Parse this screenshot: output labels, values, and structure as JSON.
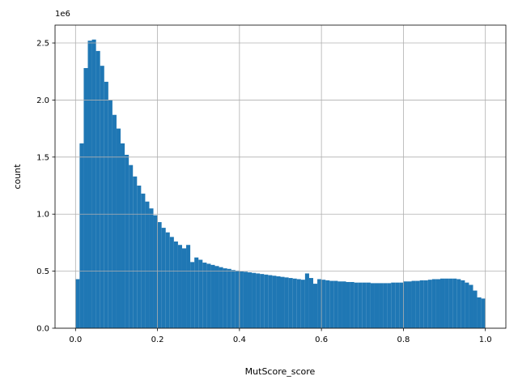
{
  "chart_data": {
    "type": "histogram",
    "x_label": "MutScore_score",
    "y_label": "count",
    "y_offset_label": "1e6",
    "color": "#1f77b4",
    "grid": true,
    "bins": [
      0,
      0.01,
      0.02,
      0.03,
      0.04,
      0.05,
      0.06,
      0.07,
      0.08,
      0.09,
      0.1,
      0.11,
      0.12,
      0.13,
      0.14,
      0.15,
      0.16,
      0.17,
      0.18,
      0.19,
      0.2,
      0.21,
      0.22,
      0.23,
      0.24,
      0.25,
      0.26,
      0.27,
      0.28,
      0.29,
      0.3,
      0.31,
      0.32,
      0.33,
      0.34,
      0.35,
      0.36,
      0.37,
      0.38,
      0.39,
      0.4,
      0.41,
      0.42,
      0.43,
      0.44,
      0.45,
      0.46,
      0.47,
      0.48,
      0.49,
      0.5,
      0.51,
      0.52,
      0.53,
      0.54,
      0.55,
      0.56,
      0.57,
      0.58,
      0.59,
      0.6,
      0.61,
      0.62,
      0.63,
      0.64,
      0.65,
      0.66,
      0.67,
      0.68,
      0.69,
      0.7,
      0.71,
      0.72,
      0.73,
      0.74,
      0.75,
      0.76,
      0.77,
      0.78,
      0.79,
      0.8,
      0.81,
      0.82,
      0.83,
      0.84,
      0.85,
      0.86,
      0.87,
      0.88,
      0.89,
      0.9,
      0.91,
      0.92,
      0.93,
      0.94,
      0.95,
      0.96,
      0.97,
      0.98,
      0.99,
      1
    ],
    "counts": [
      430000,
      1620000,
      2280000,
      2520000,
      2530000,
      2430000,
      2300000,
      2160000,
      2000000,
      1870000,
      1750000,
      1620000,
      1520000,
      1430000,
      1330000,
      1250000,
      1180000,
      1110000,
      1050000,
      990000,
      930000,
      880000,
      840000,
      800000,
      760000,
      730000,
      700000,
      730000,
      580000,
      620000,
      600000,
      575000,
      565000,
      555000,
      545000,
      535000,
      525000,
      520000,
      510000,
      505000,
      500000,
      495000,
      490000,
      485000,
      480000,
      475000,
      470000,
      465000,
      460000,
      455000,
      450000,
      445000,
      440000,
      435000,
      430000,
      425000,
      480000,
      440000,
      390000,
      430000,
      425000,
      420000,
      415000,
      415000,
      410000,
      410000,
      405000,
      405000,
      400000,
      400000,
      400000,
      400000,
      395000,
      395000,
      395000,
      395000,
      395000,
      400000,
      400000,
      400000,
      410000,
      410000,
      415000,
      415000,
      420000,
      420000,
      425000,
      430000,
      430000,
      435000,
      435000,
      435000,
      435000,
      430000,
      420000,
      400000,
      380000,
      330000,
      270000,
      260000
    ],
    "xlim": [
      -0.05,
      1.05
    ],
    "ylim": [
      0,
      2656500
    ],
    "xticks": [
      {
        "value": 0,
        "label": "0.0"
      },
      0.2,
      0.4,
      0.6,
      0.8,
      {
        "value": 1,
        "label": "1.0"
      }
    ],
    "yticks": [
      {
        "value": 0,
        "label": "0.0"
      },
      {
        "value": 500000,
        "label": "0.5"
      },
      {
        "value": 1000000,
        "label": "1.0"
      },
      {
        "value": 1500000,
        "label": "1.5"
      },
      {
        "value": 2000000,
        "label": "2.0"
      },
      {
        "value": 2500000,
        "label": "2.5"
      }
    ]
  }
}
